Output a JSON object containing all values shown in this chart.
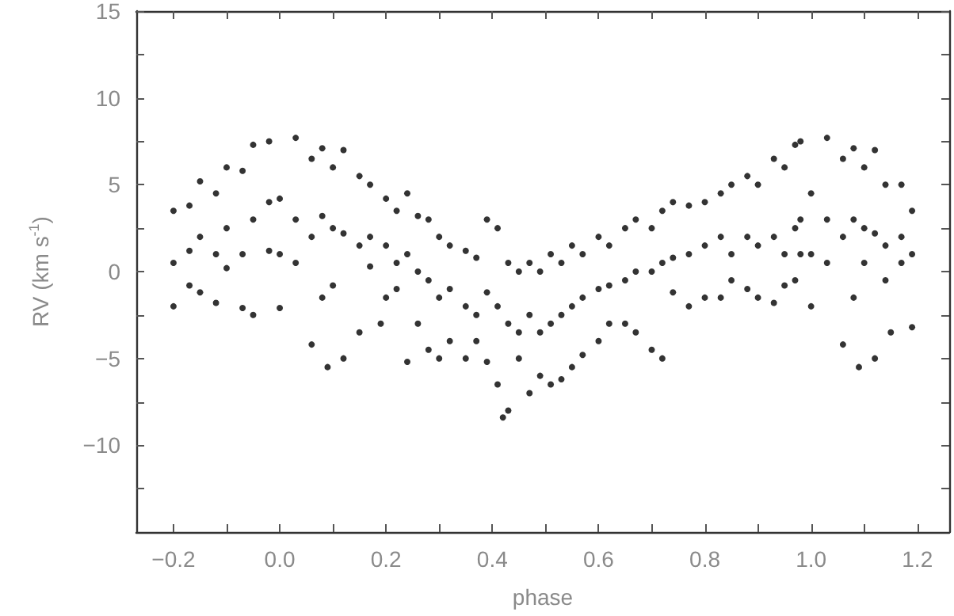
{
  "chart_data": {
    "type": "scatter",
    "xlabel": "phase",
    "ylabel": "RV (km s$^{-1}$)",
    "xlim": [
      -0.27,
      1.26
    ],
    "xticks": [
      {
        "value": -0.2,
        "label": "−0.2"
      },
      {
        "value": -0.1,
        "label": null
      },
      {
        "value": 0,
        "label": "0.0"
      },
      {
        "value": 0.1,
        "label": null
      },
      {
        "value": 0.2,
        "label": "0.2"
      },
      {
        "value": 0.3,
        "label": null
      },
      {
        "value": 0.4,
        "label": "0.4"
      },
      {
        "value": 0.5,
        "label": null
      },
      {
        "value": 0.6,
        "label": "0.6"
      },
      {
        "value": 0.7,
        "label": null
      },
      {
        "value": 0.8,
        "label": "0.8"
      },
      {
        "value": 0.9,
        "label": null
      },
      {
        "value": 1,
        "label": "1.0"
      },
      {
        "value": 1.1,
        "label": null
      },
      {
        "value": 1.2,
        "label": "1.2"
      }
    ],
    "ylim": [
      -15,
      15
    ],
    "yticks": [
      {
        "value": -12.5,
        "label": null
      },
      {
        "value": -10,
        "label": "−10"
      },
      {
        "value": -7.5,
        "label": null
      },
      {
        "value": -5,
        "label": "−5"
      },
      {
        "value": -2.5,
        "label": null
      },
      0,
      {
        "value": 2.5,
        "label": null
      },
      5,
      {
        "value": 7.5,
        "label": null
      },
      10,
      {
        "value": 12.5,
        "label": null
      },
      15
    ],
    "marker": "circle",
    "series": [
      {
        "color": "#000000",
        "x": [
          -0.2,
          -0.2,
          -0.2,
          -0.17,
          -0.17,
          -0.17,
          -0.15,
          -0.15,
          -0.15,
          -0.12,
          -0.12,
          -0.12,
          -0.1,
          -0.1,
          -0.1,
          -0.07,
          -0.07,
          -0.07,
          -0.05,
          -0.05,
          -0.05,
          -0.02,
          -0.02,
          -0.02,
          0,
          0,
          0,
          0.03,
          0.03,
          0.03,
          0.06,
          0.06,
          0.06,
          0.08,
          0.08,
          0.08,
          0.09,
          0.1,
          0.1,
          0.1,
          0.12,
          0.12,
          0.12,
          0.15,
          0.15,
          0.15,
          0.17,
          0.17,
          0.17,
          0.19,
          0.2,
          0.2,
          0.2,
          0.22,
          0.22,
          0.22,
          0.24,
          0.24,
          0.24,
          0.26,
          0.26,
          0.26,
          0.28,
          0.28,
          0.28,
          0.3,
          0.3,
          0.3,
          0.32,
          0.32,
          0.32,
          0.35,
          0.35,
          0.35,
          0.37,
          0.37,
          0.37,
          0.39,
          0.39,
          0.39,
          0.41,
          0.41,
          0.41,
          0.42,
          0.43,
          0.43,
          0.43,
          0.45,
          0.45,
          0.45,
          0.47,
          0.47,
          0.47,
          0.49,
          0.49,
          0.49,
          0.51,
          0.51,
          0.51,
          0.53,
          0.53,
          0.53,
          0.55,
          0.55,
          0.55,
          0.57,
          0.57,
          0.57,
          0.6,
          0.6,
          0.6,
          0.62,
          0.62,
          0.62,
          0.65,
          0.65,
          0.65,
          0.67,
          0.67,
          0.67,
          0.7,
          0.7,
          0.7,
          0.72,
          0.72,
          0.72,
          0.74,
          0.74,
          0.74,
          0.77,
          0.77,
          0.77,
          0.8,
          0.8,
          0.8,
          0.83,
          0.83,
          0.83,
          0.85,
          0.85,
          0.85,
          0.88,
          0.88,
          0.88,
          0.9,
          0.9,
          0.9,
          0.93,
          0.93,
          0.93,
          0.95,
          0.95,
          0.95,
          0.97,
          0.97,
          0.97,
          0.98,
          0.98,
          0.98,
          1,
          1,
          1,
          1.03,
          1.03,
          1.03,
          1.06,
          1.06,
          1.06,
          1.08,
          1.08,
          1.08,
          1.09,
          1.1,
          1.1,
          1.1,
          1.12,
          1.12,
          1.12,
          1.14,
          1.14,
          1.14,
          1.15,
          1.17,
          1.17,
          1.17,
          1.19,
          1.19,
          1.19
        ],
        "values": [
          3.5,
          0.5,
          -2.0,
          3.8,
          1.2,
          -0.8,
          5.2,
          2.0,
          -1.2,
          4.5,
          1.0,
          -1.8,
          6.0,
          2.5,
          0.2,
          5.8,
          1.0,
          -2.1,
          7.3,
          3.0,
          -2.5,
          7.5,
          4.0,
          1.2,
          4.2,
          1.0,
          -2.1,
          7.7,
          3.0,
          0.5,
          6.5,
          2.0,
          -4.2,
          7.1,
          3.2,
          -1.5,
          -5.5,
          6.0,
          2.5,
          -0.8,
          7.0,
          2.2,
          -5.0,
          5.5,
          1.5,
          -3.5,
          5.0,
          2.0,
          0.3,
          -3.0,
          4.2,
          1.5,
          -1.5,
          3.5,
          0.5,
          -1.0,
          4.5,
          1.0,
          -5.2,
          3.2,
          0.0,
          -3.0,
          3.0,
          -0.5,
          -4.5,
          2.0,
          -1.5,
          -5.0,
          1.5,
          -1.0,
          -4.0,
          1.2,
          -2.0,
          -5.0,
          0.8,
          -2.5,
          -4.0,
          3.0,
          -1.2,
          -5.2,
          2.5,
          -2.0,
          -6.5,
          -8.4,
          0.5,
          -3.0,
          -8.0,
          0.0,
          -3.5,
          -5.0,
          0.5,
          -2.5,
          -7.0,
          0.0,
          -3.5,
          -6.0,
          1.0,
          -3.0,
          -6.5,
          0.5,
          -2.5,
          -6.2,
          1.5,
          -2.0,
          -5.5,
          1.0,
          -1.5,
          -4.8,
          2.0,
          -1.0,
          -4.0,
          1.5,
          -0.8,
          -3.0,
          2.5,
          -0.5,
          -3.0,
          3.0,
          0.0,
          -3.5,
          2.5,
          0.0,
          -4.5,
          3.5,
          0.5,
          -5.0,
          4.0,
          0.8,
          -1.2,
          3.8,
          1.0,
          -2.0,
          4.0,
          1.5,
          -1.5,
          4.5,
          2.0,
          -1.5,
          5.0,
          1.0,
          -0.5,
          5.5,
          2.0,
          -1.0,
          5.0,
          1.5,
          -1.5,
          6.5,
          2.0,
          -1.8,
          6.0,
          1.0,
          -0.8,
          7.3,
          2.5,
          -0.5,
          7.5,
          3.0,
          1.0,
          4.5,
          1.0,
          -2.0,
          7.7,
          3.0,
          0.5,
          6.5,
          2.0,
          -4.2,
          7.1,
          3.0,
          -1.5,
          -5.5,
          6.0,
          2.5,
          0.5,
          7.0,
          2.2,
          -5.0,
          5.0,
          1.5,
          -0.5,
          -3.5,
          5.0,
          2.0,
          0.5,
          3.5,
          1.0,
          -3.2
        ]
      }
    ]
  }
}
